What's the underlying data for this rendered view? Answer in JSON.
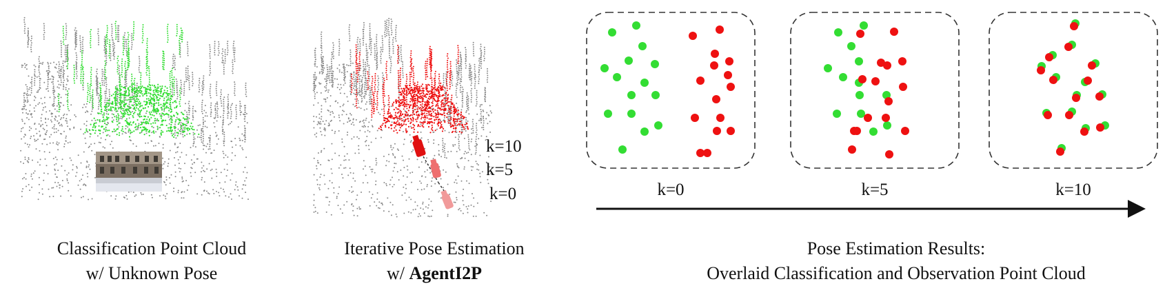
{
  "colors": {
    "classification": "#33dd33",
    "observation": "#ee1111",
    "scene_points": "#8a8a8a",
    "background": "#ffffff"
  },
  "panel1": {
    "caption_line1": "Classification Point Cloud",
    "caption_line2": "w/ Unknown Pose"
  },
  "panel2": {
    "caption_line1": "Iterative Pose Estimation",
    "caption_prefix": "w/ ",
    "caption_bold": "AgentI2P",
    "iteration_labels": [
      "k=10",
      "k=5",
      "k=0"
    ]
  },
  "panel3": {
    "caption_line1": "Pose Estimation Results:",
    "caption_line2": "Overlaid Classification and Observation Point Cloud",
    "boxes": [
      {
        "label": "k=0"
      },
      {
        "label": "k=5"
      },
      {
        "label": "k=10"
      }
    ]
  }
}
